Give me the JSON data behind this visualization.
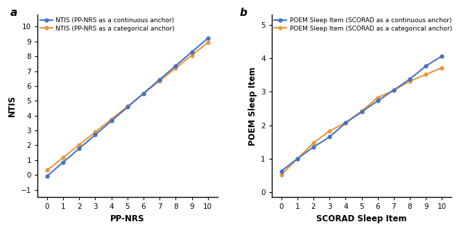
{
  "panel_a": {
    "label": "a",
    "xlabel": "PP-NRS",
    "ylabel": "NTIS",
    "legend1": "NTIS (PP-NRS as a continuous anchor)",
    "legend2": "NTIS (PP-NRS as a categorical anchor)",
    "x": [
      0,
      1,
      2,
      3,
      4,
      5,
      6,
      7,
      8,
      9,
      10
    ],
    "y_continuous": [
      -0.07,
      0.88,
      1.82,
      2.78,
      4.65,
      5.55,
      6.45,
      6.45,
      8.37,
      8.37,
      9.22
    ],
    "y_categorical": [
      0.32,
      0.9,
      1.62,
      2.62,
      3.65,
      4.52,
      5.42,
      6.38,
      7.52,
      8.18,
      8.93
    ],
    "ylim": [
      -1.5,
      10.8
    ],
    "yticks": [
      -1,
      0,
      1,
      2,
      3,
      4,
      5,
      6,
      7,
      8,
      9,
      10
    ],
    "xticks": [
      0,
      1,
      2,
      3,
      4,
      5,
      6,
      7,
      8,
      9,
      10
    ],
    "color_continuous": "#4472c4",
    "color_categorical": "#e8973a"
  },
  "panel_b": {
    "label": "b",
    "xlabel": "SCORAD Sleep Item",
    "ylabel": "POEM Sleep Item",
    "legend1": "POEM Sleep Item (SCORAD as a continuous anchor)",
    "legend2": "POEM Sleep Item (SCORAD as a categorical anchor)",
    "x": [
      0,
      1,
      2,
      3,
      4,
      5,
      6,
      7,
      8,
      9,
      10
    ],
    "y_continuous": [
      0.63,
      1.0,
      1.35,
      1.65,
      2.07,
      2.4,
      2.73,
      3.05,
      3.38,
      3.77,
      4.07
    ],
    "y_categorical": [
      0.52,
      1.0,
      1.47,
      1.83,
      2.08,
      2.42,
      2.83,
      3.04,
      3.32,
      3.52,
      3.72
    ],
    "ylim": [
      -0.15,
      5.3
    ],
    "yticks": [
      0,
      1,
      2,
      3,
      4,
      5
    ],
    "xticks": [
      0,
      1,
      2,
      3,
      4,
      5,
      6,
      7,
      8,
      9,
      10
    ],
    "color_continuous": "#4472c4",
    "color_categorical": "#e8973a"
  }
}
